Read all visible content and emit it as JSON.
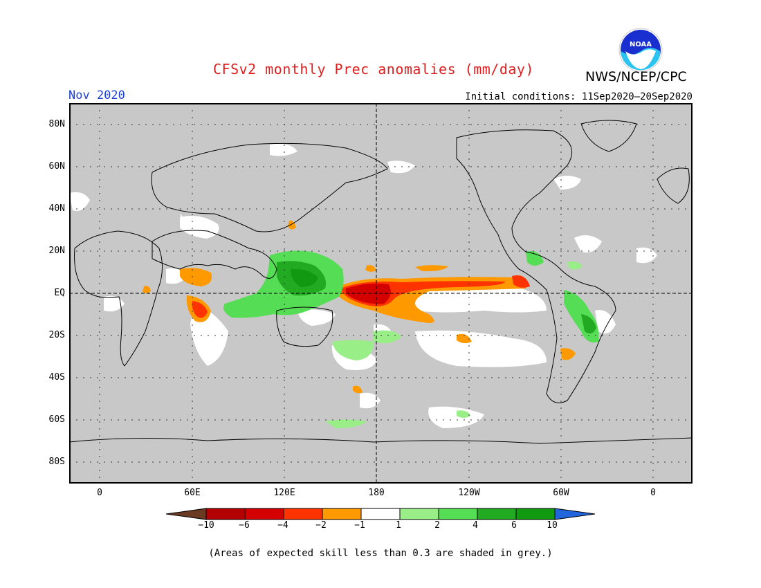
{
  "header": {
    "title": "CFSv2 monthly Prec anomalies (mm/day)",
    "organization": "NWS/NCEP/CPC",
    "logo_text": "NOAA",
    "period": "Nov 2020",
    "initial_conditions": "Initial conditions: 11Sep2020–20Sep2020"
  },
  "axes": {
    "lat_labels": [
      "80N",
      "60N",
      "40N",
      "20N",
      "EQ",
      "20S",
      "40S",
      "60S",
      "80S"
    ],
    "lon_labels": [
      "0",
      "60E",
      "120E",
      "180",
      "120W",
      "60W",
      "0"
    ]
  },
  "colorbar": {
    "tick_labels": [
      "−10",
      "−6",
      "−4",
      "−2",
      "−1",
      "1",
      "2",
      "4",
      "6",
      "10"
    ],
    "colors": [
      "#6b3a22",
      "#b30000",
      "#d40000",
      "#ff3300",
      "#ff9900",
      "#ffffff",
      "#99ee88",
      "#55dd55",
      "#22aa22",
      "#119911",
      "#2266dd"
    ]
  },
  "footnote": "(Areas of expected skill less than 0.3 are shaded in grey.)",
  "colors": {
    "skill_grey": "#c8c8c8",
    "title_red": "#e02020",
    "period_blue": "#1a3fd9"
  }
}
